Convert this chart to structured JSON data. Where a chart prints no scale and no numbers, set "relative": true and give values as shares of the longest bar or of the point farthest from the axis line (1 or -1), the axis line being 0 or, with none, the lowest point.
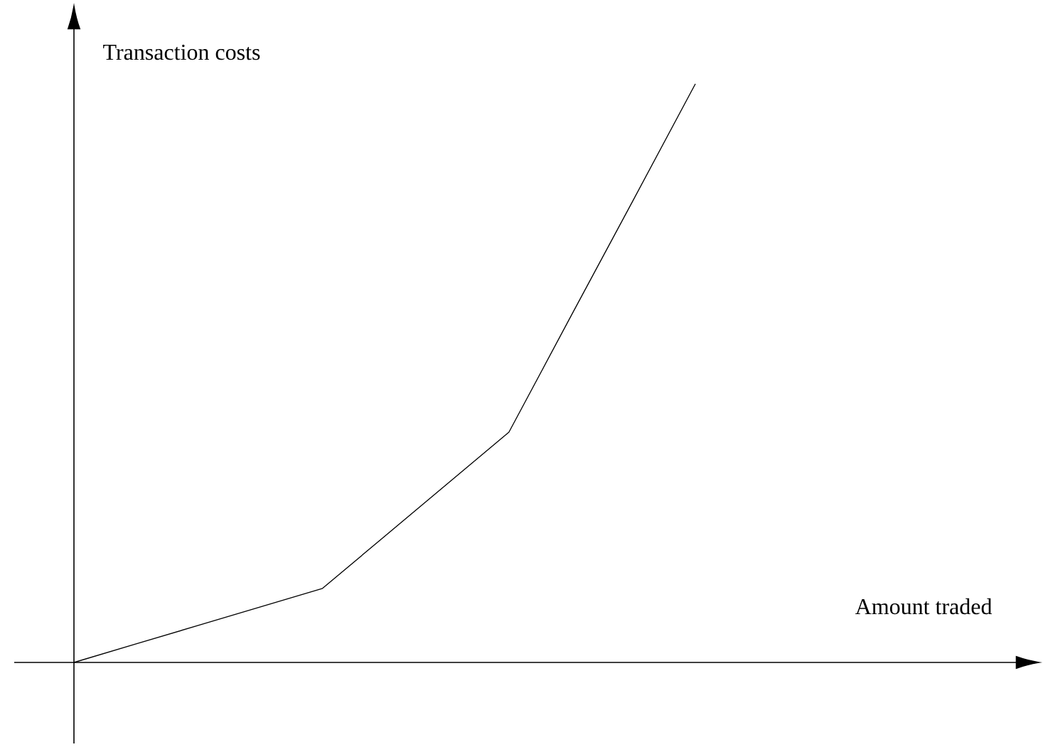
{
  "chart_data": {
    "type": "line",
    "relative": true,
    "ylabel": "Transaction costs",
    "annotations": [
      "Amount traded"
    ],
    "categories": [
      null,
      null,
      null,
      null,
      null,
      null,
      null,
      null,
      null,
      null,
      null
    ],
    "values": [
      0,
      0.032,
      0.064,
      0.096,
      0.128,
      0.218,
      0.308,
      0.398,
      0.599,
      0.799,
      1
    ],
    "color": "#000000",
    "marker": "none",
    "line_style": "solid"
  }
}
